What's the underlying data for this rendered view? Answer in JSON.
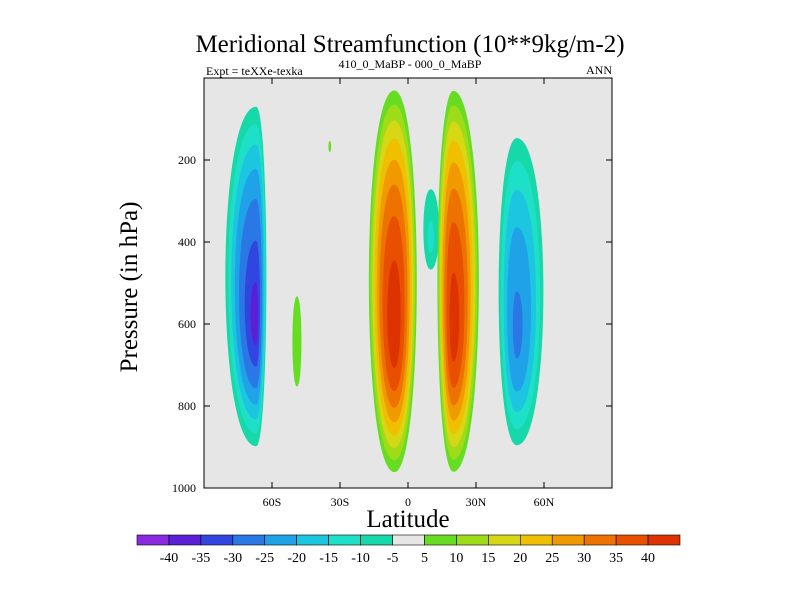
{
  "chart_data": {
    "type": "heatmap",
    "title": "Meridional Streamfunction (10**9kg/m-2)",
    "left_label": "Expt = teXXe-texka",
    "center_label": "410_0_MaBP - 000_0_MaBP",
    "right_label": "ANN",
    "xlabel": "Latitude",
    "ylabel": "Pressure (in hPa)",
    "xlim": [
      -90,
      90
    ],
    "ylim": [
      1000,
      0
    ],
    "x_ticks": [
      {
        "value": -60,
        "label": "60S"
      },
      {
        "value": -30,
        "label": "30S"
      },
      {
        "value": 0,
        "label": "0"
      },
      {
        "value": 30,
        "label": "30N"
      },
      {
        "value": 60,
        "label": "60N"
      }
    ],
    "y_ticks": [
      {
        "value": 200,
        "label": "200"
      },
      {
        "value": 400,
        "label": "400"
      },
      {
        "value": 600,
        "label": "600"
      },
      {
        "value": 800,
        "label": "800"
      },
      {
        "value": 1000,
        "label": "1000"
      }
    ],
    "background_color": "#e6e6e6",
    "colorbar": {
      "labels": [
        "-40",
        "-35",
        "-30",
        "-25",
        "-20",
        "-15",
        "-10",
        "-5",
        "5",
        "10",
        "15",
        "20",
        "25",
        "30",
        "35",
        "40"
      ],
      "colors": [
        "#8a2be2",
        "#5a1fd6",
        "#3146e0",
        "#2a78e6",
        "#1fa2e8",
        "#1cc6e0",
        "#1ee0c8",
        "#16d8a8",
        "#e6e6e6",
        "#66dd22",
        "#9edc1a",
        "#d6d814",
        "#f0c000",
        "#f09a00",
        "#ee7200",
        "#e85000",
        "#dd3300"
      ]
    },
    "features": [
      {
        "name": "southern-cell",
        "lat_min": -88,
        "lat_max": -60,
        "p_top": 0,
        "p_bottom": 960,
        "peak_lat": -67,
        "peak_value": -38
      },
      {
        "name": "southern-positive-band",
        "lat_min": -53,
        "lat_max": -45,
        "p_top": 470,
        "p_bottom": 800,
        "peak_lat": -49,
        "peak_value": 8
      },
      {
        "name": "upper-small-positive",
        "lat_min": -36,
        "lat_max": -33,
        "p_top": 140,
        "p_bottom": 190,
        "peak_lat": -34.5,
        "peak_value": 6
      },
      {
        "name": "southern-tropical-cell",
        "lat_min": -22,
        "lat_max": 8,
        "p_top": 0,
        "p_bottom": 990,
        "peak_lat": -6,
        "peak_value": 42
      },
      {
        "name": "equatorial-negative",
        "lat_min": 3,
        "lat_max": 18,
        "p_top": 200,
        "p_bottom": 520,
        "peak_lat": 10,
        "peak_value": -15
      },
      {
        "name": "northern-tropical-cell",
        "lat_min": 10,
        "lat_max": 36,
        "p_top": 0,
        "p_bottom": 990,
        "peak_lat": 20,
        "peak_value": 41
      },
      {
        "name": "northern-cell",
        "lat_min": 35,
        "lat_max": 67,
        "p_top": 60,
        "p_bottom": 970,
        "peak_lat": 48,
        "peak_value": -30
      }
    ]
  }
}
